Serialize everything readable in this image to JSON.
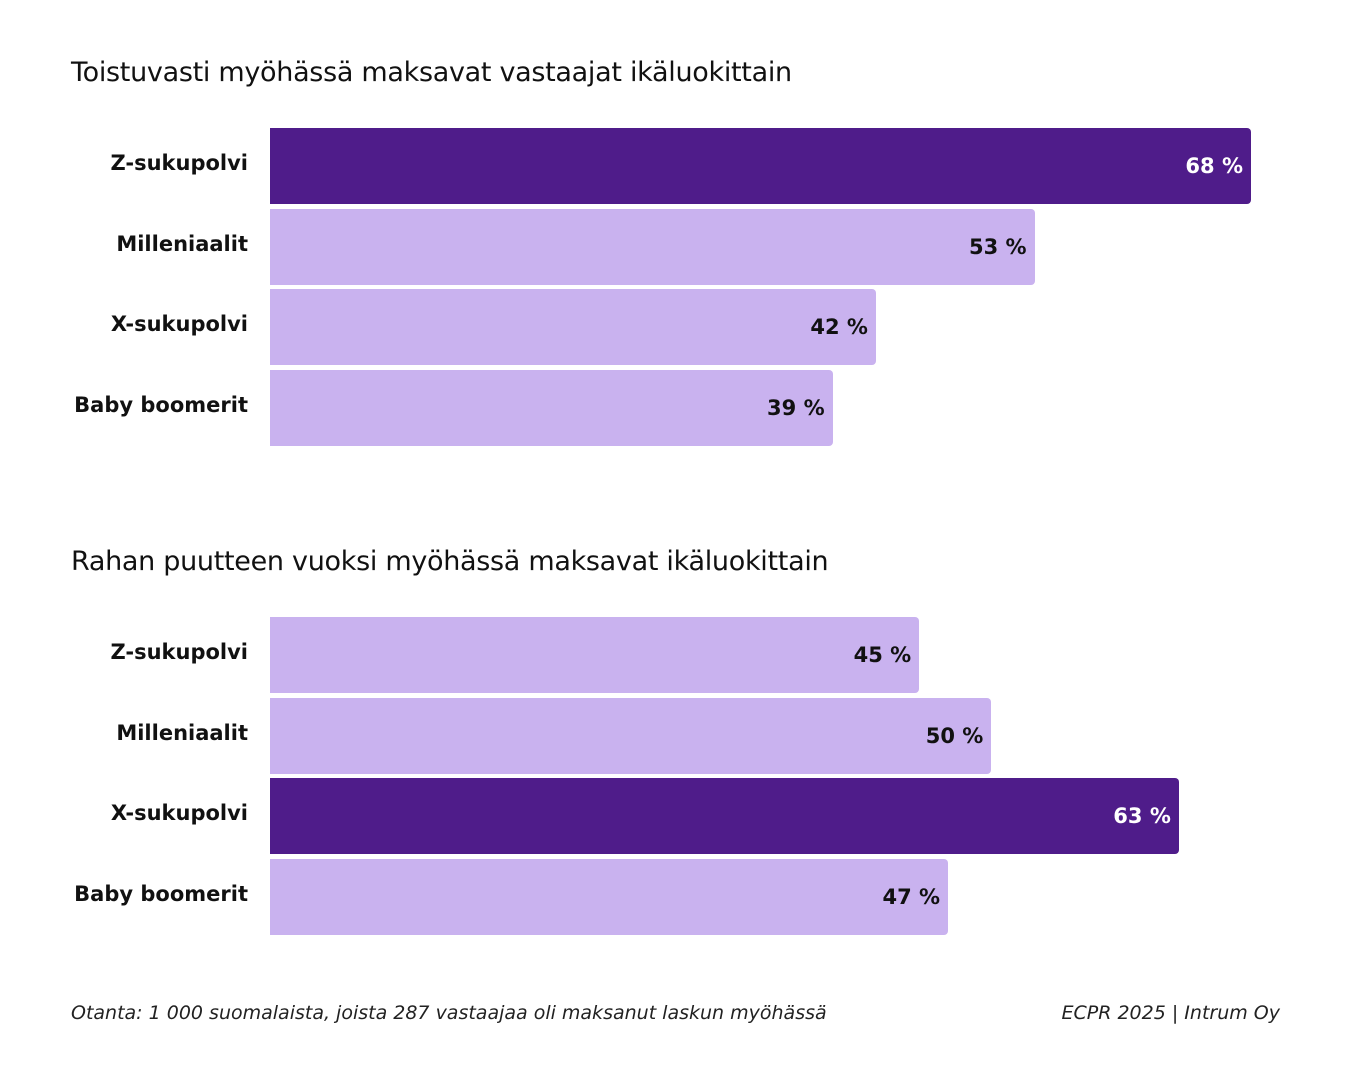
{
  "chart_data": [
    {
      "type": "bar",
      "orientation": "horizontal",
      "title": "Toistuvasti myöhässä maksavat vastaajat ikäluokittain",
      "categories": [
        "Z-sukupolvi",
        "Milleniaalit",
        "X-sukupolvi",
        "Baby boomerit"
      ],
      "values": [
        68,
        53,
        42,
        39
      ],
      "value_labels": [
        "68 %",
        "53 %",
        "42 %",
        "39 %"
      ],
      "highlight_index": 0,
      "xlim": [
        0,
        68
      ],
      "grid": false
    },
    {
      "type": "bar",
      "orientation": "horizontal",
      "title": "Rahan puutteen vuoksi myöhässä maksavat ikäluokittain",
      "categories": [
        "Z-sukupolvi",
        "Milleniaalit",
        "X-sukupolvi",
        "Baby boomerit"
      ],
      "values": [
        45,
        50,
        63,
        47
      ],
      "value_labels": [
        "45 %",
        "50 %",
        "63 %",
        "47 %"
      ],
      "highlight_index": 2,
      "xlim": [
        0,
        68
      ],
      "grid": false
    }
  ],
  "colors": {
    "highlight": "#4f1c8a",
    "default": "#c9b2ef",
    "highlight_text": "#ffffff",
    "default_text": "#111111"
  },
  "footer": {
    "note": "Otanta: 1 000 suomalaista, joista 287 vastaajaa oli maksanut laskun myöhässä",
    "source": "ECPR 2025 | Intrum Oy"
  }
}
